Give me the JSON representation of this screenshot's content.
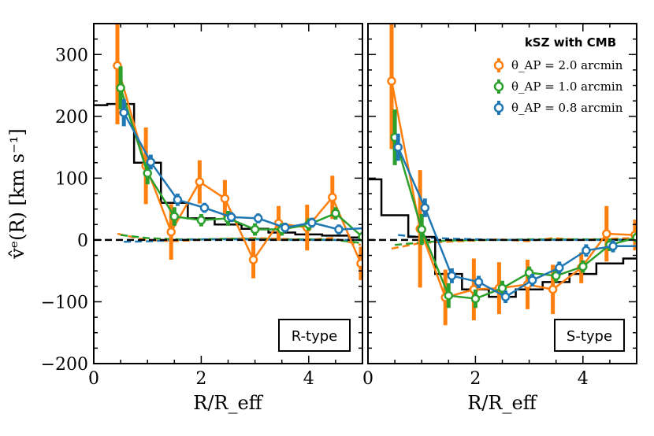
{
  "chart_data": {
    "type": "line",
    "ylabel": "v̂ᵉ(R) [km s⁻¹]",
    "xlabel": "R/R_eff",
    "ylim": [
      -200,
      350
    ],
    "xlim": [
      0,
      5
    ],
    "yticks": [
      "−200",
      "−100",
      "0",
      "100",
      "200",
      "300"
    ],
    "yticks_values": [
      -200,
      -100,
      0,
      100,
      200,
      300
    ],
    "xticks": [
      "0",
      "2",
      "4"
    ],
    "xticks_values": [
      0,
      2,
      4
    ],
    "legend": {
      "title": "kSZ with CMB",
      "entries": [
        {
          "label": "θ_AP = 2.0 arcmin",
          "color": "#ff7f0e"
        },
        {
          "label": "θ_AP = 1.0 arcmin",
          "color": "#2ca02c"
        },
        {
          "label": "θ_AP = 0.8 arcmin",
          "color": "#1f77b4"
        }
      ]
    },
    "colors": {
      "orange": "#ff7f0e",
      "green": "#2ca02c",
      "blue": "#1f77b4",
      "black": "#000000"
    },
    "panels": [
      {
        "label": "R-type",
        "model_step": {
          "x": [
            0,
            0.25,
            0.75,
            1.25,
            1.75,
            2.25,
            2.75,
            3.25,
            3.75,
            4.25,
            4.75,
            5.0
          ],
          "y": [
            218,
            220,
            125,
            60,
            35,
            25,
            18,
            12,
            9,
            7,
            4,
            4
          ]
        },
        "series": [
          {
            "name": "θ_AP = 2.0 arcmin",
            "color": "#ff7f0e",
            "x": [
              0.44,
              0.97,
              1.44,
              1.97,
              2.44,
              2.97,
              3.44,
              3.97,
              4.44,
              4.97
            ],
            "y": [
              282,
              120,
              13,
              94,
              67,
              -32,
              27,
              20,
              69,
              -38
            ],
            "err": [
              95,
              62,
              45,
              35,
              30,
              30,
              28,
              37,
              35,
              27
            ],
            "null": [
              10,
              0,
              -2,
              0,
              2,
              3,
              2,
              0,
              3,
              -8
            ]
          },
          {
            "name": "θ_AP = 1.0 arcmin",
            "color": "#2ca02c",
            "x": [
              0.5,
              1.0,
              1.5,
              2.0,
              2.5,
              3.0,
              3.5,
              4.0,
              4.5,
              5.0
            ],
            "y": [
              246,
              108,
              38,
              32,
              35,
              17,
              17,
              25,
              43,
              5
            ],
            "err": [
              35,
              18,
              15,
              10,
              12,
              10,
              10,
              10,
              10,
              8
            ],
            "null": [
              8,
              3,
              1,
              1,
              2,
              2,
              1,
              1,
              0,
              -5
            ]
          },
          {
            "name": "θ_AP = 0.8 arcmin",
            "color": "#1f77b4",
            "x": [
              0.56,
              1.06,
              1.56,
              2.06,
              2.56,
              3.06,
              3.56,
              4.06,
              4.56,
              5.06
            ],
            "y": [
              206,
              126,
              65,
              52,
              37,
              35,
              20,
              28,
              17,
              19
            ],
            "err": [
              22,
              12,
              10,
              8,
              8,
              8,
              8,
              8,
              8,
              8
            ],
            "null": [
              -3,
              -2,
              0,
              1,
              1,
              1,
              0,
              0,
              0,
              0
            ]
          }
        ]
      },
      {
        "label": "S-type",
        "model_step": {
          "x": [
            0,
            0.25,
            0.75,
            1.25,
            1.75,
            2.25,
            2.75,
            3.25,
            3.75,
            4.25,
            4.75,
            5.0
          ],
          "y": [
            98,
            40,
            5,
            -55,
            -80,
            -92,
            -80,
            -68,
            -55,
            -38,
            -30,
            -30
          ]
        },
        "series": [
          {
            "name": "θ_AP = 2.0 arcmin",
            "color": "#ff7f0e",
            "x": [
              0.44,
              0.97,
              1.44,
              1.97,
              2.44,
              2.97,
              3.44,
              3.97,
              4.44,
              4.97
            ],
            "y": [
              257,
              18,
              -93,
              -80,
              -78,
              -72,
              -80,
              -45,
              10,
              8
            ],
            "err": [
              110,
              95,
              45,
              50,
              42,
              40,
              40,
              25,
              45,
              25
            ],
            "null": [
              -14,
              -5,
              -3,
              -1,
              1,
              -2,
              3,
              0,
              2,
              3
            ]
          },
          {
            "name": "θ_AP = 1.0 arcmin",
            "color": "#2ca02c",
            "x": [
              0.5,
              1.0,
              1.5,
              2.0,
              2.5,
              3.0,
              3.5,
              4.0,
              4.5,
              5.0
            ],
            "y": [
              166,
              17,
              -90,
              -95,
              -78,
              -53,
              -58,
              -43,
              -8,
              4
            ],
            "err": [
              45,
              25,
              20,
              15,
              12,
              10,
              10,
              10,
              10,
              8
            ],
            "null": [
              -8,
              -4,
              -1,
              0,
              0,
              1,
              1,
              1,
              1,
              0
            ]
          },
          {
            "name": "θ_AP = 0.8 arcmin",
            "color": "#1f77b4",
            "x": [
              0.56,
              1.06,
              1.56,
              2.06,
              2.56,
              3.06,
              3.56,
              4.06,
              4.56,
              5.06
            ],
            "y": [
              150,
              52,
              -58,
              -68,
              -92,
              -65,
              -45,
              -17,
              -10,
              -10
            ],
            "err": [
              22,
              15,
              12,
              10,
              10,
              10,
              10,
              10,
              10,
              8
            ],
            "null": [
              8,
              4,
              2,
              1,
              0,
              0,
              0,
              0,
              0,
              0
            ]
          }
        ]
      }
    ]
  }
}
